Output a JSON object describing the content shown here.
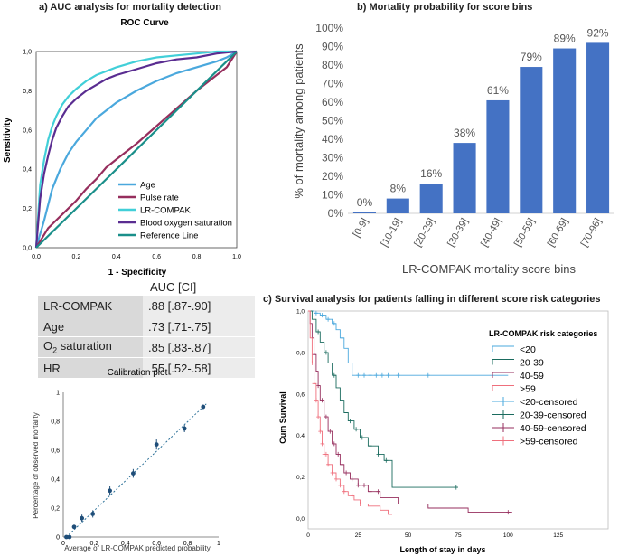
{
  "titles": {
    "a": "a) AUC analysis for mortality detection",
    "b": "b) Mortality probability for score bins",
    "c": "c) Survival analysis for patients falling in different score risk categories"
  },
  "auc_table": {
    "header": "AUC [CI]",
    "rows": [
      {
        "label": "LR-COMPAK",
        "label_sub": "",
        "label_rest": "",
        "value": ".88 [.87-.90]"
      },
      {
        "label": "Age",
        "label_sub": "",
        "label_rest": "",
        "value": ".73 [.71-.75]"
      },
      {
        "label": "O",
        "label_sub": "2",
        "label_rest": " saturation",
        "value": ".85 [.83-.87]"
      },
      {
        "label": "HR",
        "label_sub": "",
        "label_rest": "",
        "value": ".55 [.52-.58]"
      }
    ]
  },
  "chart_data": [
    {
      "type": "line",
      "id": "roc",
      "title": "ROC Curve",
      "xlabel": "1 - Specificity",
      "ylabel": "Sensitivity",
      "xlim": [
        0,
        1
      ],
      "ylim": [
        0,
        1
      ],
      "ticks": [
        "0,0",
        "0,2",
        "0,4",
        "0,6",
        "0,8",
        "1,0"
      ],
      "legend_position": "bottom-right",
      "series": [
        {
          "name": "Age",
          "color": "#4aa8dd",
          "x": [
            0,
            0.04,
            0.08,
            0.12,
            0.16,
            0.2,
            0.25,
            0.3,
            0.35,
            0.4,
            0.5,
            0.6,
            0.7,
            0.8,
            0.9,
            0.95,
            1.0
          ],
          "y": [
            0,
            0.14,
            0.3,
            0.4,
            0.48,
            0.54,
            0.6,
            0.66,
            0.7,
            0.74,
            0.8,
            0.85,
            0.89,
            0.92,
            0.95,
            0.97,
            1.0
          ]
        },
        {
          "name": "Pulse rate",
          "color": "#962e5d",
          "x": [
            0,
            0.03,
            0.06,
            0.1,
            0.15,
            0.2,
            0.25,
            0.3,
            0.35,
            0.4,
            0.5,
            0.6,
            0.7,
            0.8,
            0.9,
            0.95,
            1.0
          ],
          "y": [
            0,
            0.05,
            0.1,
            0.14,
            0.19,
            0.24,
            0.3,
            0.35,
            0.41,
            0.45,
            0.53,
            0.62,
            0.71,
            0.8,
            0.88,
            0.92,
            1.0
          ]
        },
        {
          "name": "LR-COMPAK",
          "color": "#41cfd8",
          "x": [
            0,
            0.02,
            0.04,
            0.06,
            0.08,
            0.1,
            0.13,
            0.16,
            0.2,
            0.25,
            0.3,
            0.4,
            0.5,
            0.6,
            0.7,
            0.8,
            0.9,
            1.0
          ],
          "y": [
            0,
            0.32,
            0.45,
            0.55,
            0.62,
            0.67,
            0.73,
            0.77,
            0.81,
            0.85,
            0.88,
            0.92,
            0.95,
            0.97,
            0.98,
            0.99,
            1.0,
            1.0
          ]
        },
        {
          "name": "Blood oxygen saturation",
          "color": "#5a2d91",
          "x": [
            0,
            0.02,
            0.04,
            0.06,
            0.08,
            0.1,
            0.13,
            0.16,
            0.2,
            0.25,
            0.3,
            0.35,
            0.4,
            0.5,
            0.6,
            0.7,
            0.8,
            0.9,
            1.0
          ],
          "y": [
            0,
            0.25,
            0.38,
            0.47,
            0.55,
            0.61,
            0.67,
            0.72,
            0.76,
            0.8,
            0.83,
            0.86,
            0.88,
            0.91,
            0.94,
            0.96,
            0.97,
            0.99,
            1.0
          ]
        },
        {
          "name": "Reference Line",
          "color": "#1a8f8a",
          "x": [
            0,
            1
          ],
          "y": [
            0,
            1
          ]
        }
      ]
    },
    {
      "type": "bar",
      "id": "bins",
      "categories": [
        "[0-9]",
        "[10-19]",
        "[20-29]",
        "[30-39]",
        "[40-49]",
        "[50-59]",
        "[60-69]",
        "[70-96]"
      ],
      "values": [
        0,
        8,
        16,
        38,
        61,
        79,
        89,
        92
      ],
      "value_labels": [
        "0%",
        "8%",
        "16%",
        "38%",
        "61%",
        "79%",
        "89%",
        "92%"
      ],
      "color": "#4472c4",
      "xlabel": "LR-COMPAK mortality score bins",
      "ylabel": "% of mortality among patients",
      "ylim": [
        0,
        100
      ],
      "yticks": [
        "0%",
        "10%",
        "20%",
        "30%",
        "40%",
        "50%",
        "60%",
        "70%",
        "80%",
        "90%",
        "100%"
      ]
    },
    {
      "type": "scatter",
      "id": "calibration",
      "title": "Calibration plot",
      "xlabel": "Average of LR-COMPAK predicted probability",
      "ylabel": "Percentage of observed mortality",
      "xlim": [
        0,
        1
      ],
      "ylim": [
        0,
        1
      ],
      "ticks": [
        "0",
        "0,2",
        "0,4",
        "0,6",
        "0,8",
        "1"
      ],
      "color": "#1f4e79",
      "points": [
        {
          "x": 0.02,
          "y": 0.0,
          "err": 0.005
        },
        {
          "x": 0.04,
          "y": 0.0,
          "err": 0.005
        },
        {
          "x": 0.07,
          "y": 0.07,
          "err": 0.015
        },
        {
          "x": 0.12,
          "y": 0.13,
          "err": 0.025
        },
        {
          "x": 0.19,
          "y": 0.16,
          "err": 0.025
        },
        {
          "x": 0.3,
          "y": 0.32,
          "err": 0.03
        },
        {
          "x": 0.45,
          "y": 0.44,
          "err": 0.03
        },
        {
          "x": 0.6,
          "y": 0.64,
          "err": 0.035
        },
        {
          "x": 0.78,
          "y": 0.75,
          "err": 0.025
        },
        {
          "x": 0.9,
          "y": 0.9,
          "err": 0.015
        }
      ]
    },
    {
      "type": "line",
      "id": "survival",
      "title": "LR-COMPAK risk categories",
      "xlabel": "Length of stay in days",
      "ylabel": "Cum Survival",
      "xlim": [
        0,
        150
      ],
      "ylim": [
        -0.05,
        1.0
      ],
      "xticks": [
        0,
        25,
        50,
        75,
        100,
        125
      ],
      "yticks": [
        "0,0",
        "0,2",
        "0,4",
        "0,6",
        "0,8",
        "1,0"
      ],
      "legend": [
        "<20",
        "20-39",
        "40-59",
        ">59",
        "<20-censored",
        "20-39-censored",
        "40-59-censored",
        ">59-censored"
      ],
      "series": [
        {
          "name": "<20",
          "color": "#4aa8dd",
          "x": [
            0,
            3,
            6,
            9,
            12,
            14,
            16,
            18,
            20,
            22,
            100
          ],
          "y": [
            1.0,
            0.99,
            0.98,
            0.96,
            0.94,
            0.91,
            0.87,
            0.82,
            0.75,
            0.69,
            0.69
          ],
          "censored_x": [
            4,
            7,
            10,
            13,
            17,
            25,
            28,
            31,
            34,
            37,
            40,
            45,
            60
          ]
        },
        {
          "name": "20-39",
          "color": "#1a6b5e",
          "x": [
            0,
            2,
            4,
            6,
            8,
            10,
            12,
            14,
            16,
            18,
            20,
            23,
            26,
            30,
            35,
            38,
            42,
            42,
            75
          ],
          "y": [
            1.0,
            0.96,
            0.9,
            0.85,
            0.8,
            0.75,
            0.69,
            0.63,
            0.57,
            0.51,
            0.47,
            0.43,
            0.39,
            0.35,
            0.31,
            0.28,
            0.28,
            0.15,
            0.15
          ],
          "censored_x": [
            5,
            9,
            13,
            17,
            21,
            24,
            27,
            31,
            35,
            39,
            74
          ]
        },
        {
          "name": "40-59",
          "color": "#962e5d",
          "x": [
            0,
            1,
            2,
            3,
            4,
            5,
            6,
            8,
            10,
            12,
            14,
            16,
            18,
            21,
            25,
            30,
            36,
            45,
            60,
            80,
            102
          ],
          "y": [
            1.0,
            0.94,
            0.87,
            0.79,
            0.71,
            0.64,
            0.57,
            0.49,
            0.42,
            0.36,
            0.31,
            0.26,
            0.22,
            0.19,
            0.16,
            0.13,
            0.1,
            0.07,
            0.05,
            0.03,
            0.03
          ],
          "censored_x": [
            3,
            5,
            7,
            9,
            11,
            13,
            15,
            17,
            19,
            22,
            25,
            28,
            31,
            35,
            100
          ]
        },
        {
          "name": ">59",
          "color": "#ef6f7c",
          "x": [
            0,
            1,
            2,
            3,
            4,
            5,
            6,
            7,
            8,
            10,
            12,
            14,
            16,
            18,
            20,
            23,
            26,
            30,
            36,
            40,
            42
          ],
          "y": [
            1.0,
            0.87,
            0.75,
            0.65,
            0.57,
            0.49,
            0.42,
            0.36,
            0.31,
            0.26,
            0.22,
            0.19,
            0.16,
            0.13,
            0.11,
            0.09,
            0.07,
            0.06,
            0.04,
            0.02,
            0.02
          ],
          "censored_x": [
            2,
            3,
            4,
            5,
            6,
            7,
            8,
            9,
            10,
            12,
            14,
            16,
            18,
            22,
            26
          ]
        }
      ]
    }
  ]
}
